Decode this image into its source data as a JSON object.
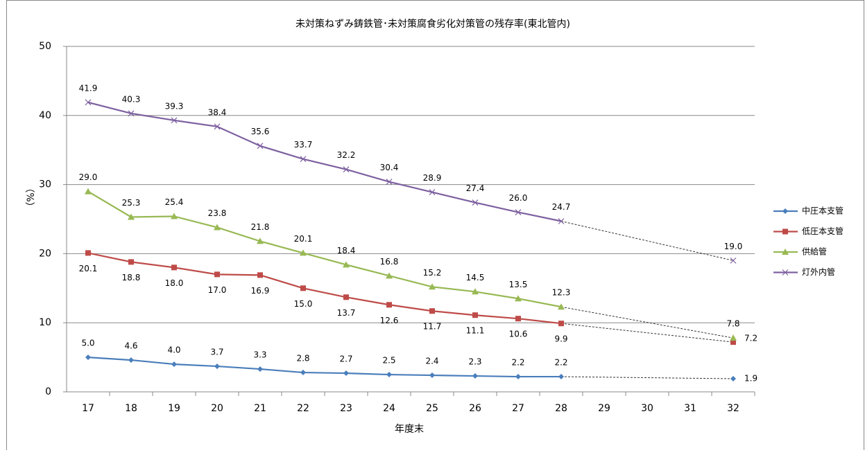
{
  "chart_data": {
    "type": "line",
    "title": "未対策ねずみ鋳鉄管･未対策腐食劣化対策管の残存率(東北管内)",
    "x_label": "年度末",
    "y_label": "（%）",
    "x": [
      17,
      18,
      19,
      20,
      21,
      22,
      23,
      24,
      25,
      26,
      27,
      28,
      32
    ],
    "xlim": [
      16.5,
      32.5
    ],
    "xticks": [
      17,
      18,
      19,
      20,
      21,
      22,
      23,
      24,
      25,
      26,
      27,
      28,
      29,
      30,
      31,
      32
    ],
    "ylim": [
      0,
      50
    ],
    "yticks": [
      0,
      10,
      20,
      30,
      40,
      50
    ],
    "grid": true,
    "legend": "right",
    "series": [
      {
        "name": "中圧本支管",
        "color": "#4a7ebb",
        "marker": "diamond",
        "label_position": "above",
        "values": [
          5.0,
          4.6,
          4.0,
          3.7,
          3.3,
          2.8,
          2.7,
          2.5,
          2.4,
          2.3,
          2.2,
          2.2,
          1.9
        ],
        "value_labels": [
          "5.0",
          "4.6",
          "4.0",
          "3.7",
          "3.3",
          "2.8",
          "2.7",
          "2.5",
          "2.4",
          "2.3",
          "2.2",
          "2.2",
          "1.9"
        ]
      },
      {
        "name": "低圧本支管",
        "color": "#be4b48",
        "marker": "square",
        "label_position": "below",
        "values": [
          20.1,
          18.8,
          18.0,
          17.0,
          16.9,
          15.0,
          13.7,
          12.6,
          11.7,
          11.1,
          10.6,
          9.9,
          7.2
        ],
        "value_labels": [
          "20.1",
          "18.8",
          "18.0",
          "17.0",
          "16.9",
          "15.0",
          "13.7",
          "12.6",
          "11.7",
          "11.1",
          "10.6",
          "9.9",
          "7.2"
        ]
      },
      {
        "name": "供給管",
        "color": "#98b954",
        "marker": "triangle",
        "label_position": "above",
        "values": [
          29.0,
          25.3,
          25.4,
          23.8,
          21.8,
          20.1,
          18.4,
          16.8,
          15.2,
          14.5,
          13.5,
          12.3,
          7.8
        ],
        "value_labels": [
          "29.0",
          "25.3",
          "25.4",
          "23.8",
          "21.8",
          "20.1",
          "18.4",
          "16.8",
          "15.2",
          "14.5",
          "13.5",
          "12.3",
          "7.8"
        ]
      },
      {
        "name": "灯外内管",
        "color": "#7d60a0",
        "marker": "x",
        "label_position": "above",
        "values": [
          41.9,
          40.3,
          39.3,
          38.4,
          35.6,
          33.7,
          32.2,
          30.4,
          28.9,
          27.4,
          26.0,
          24.7,
          19.0
        ],
        "value_labels": [
          "41.9",
          "40.3",
          "39.3",
          "38.4",
          "35.6",
          "33.7",
          "32.2",
          "30.4",
          "28.9",
          "27.4",
          "26.0",
          "24.7",
          "19.0"
        ]
      }
    ]
  }
}
